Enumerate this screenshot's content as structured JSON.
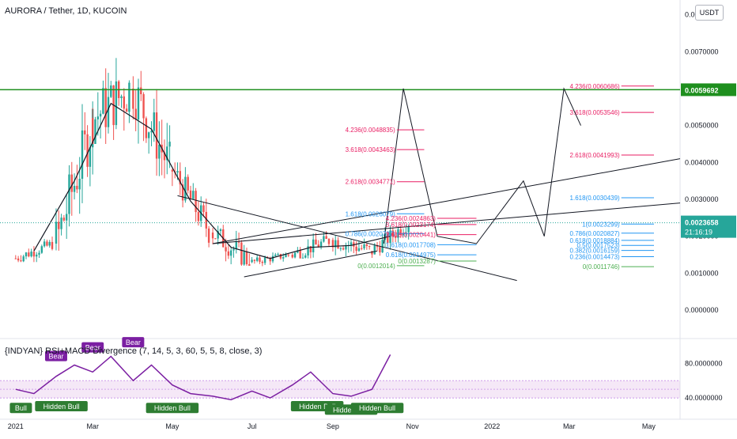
{
  "header": {
    "title": "AURORA / Tether, 1D, KUCOIN",
    "currency_button": "USDT"
  },
  "indicator": {
    "title": "{INDYAN} RSI+MACD Divergence (7, 14, 5, 3, 60, 5, 5, 8, close, 3)"
  },
  "price_axis": {
    "ticks": [
      "0.0080000",
      "0.0070000",
      "0.0060000",
      "0.0050000",
      "0.0040000",
      "0.0030000",
      "0.0020000",
      "0.0010000",
      "0.0000000"
    ],
    "tick_values": [
      0.008,
      0.007,
      0.006,
      0.005,
      0.004,
      0.003,
      0.002,
      0.001,
      0.0
    ],
    "resistance_label": "0.0059692",
    "resistance_value": 0.0059692,
    "last_price_label": "0.0023658",
    "last_price_value": 0.0023658,
    "countdown": "21:16:19"
  },
  "indicator_axis": {
    "ticks": [
      "80.0000000",
      "40.0000000"
    ],
    "tick_values": [
      80,
      40
    ]
  },
  "time_axis": {
    "labels": [
      "2021",
      "Mar",
      "May",
      "Jul",
      "Sep",
      "Nov",
      "2022",
      "Mar",
      "May"
    ]
  },
  "fib_sets": [
    {
      "levels": [
        "4.236(0.0048835)",
        "3.618(0.0043463)",
        "2.618(0.0034771)",
        "1.618(0.0026079)",
        "0.786(0.0020707)",
        "0(0.0012014)"
      ],
      "values": [
        0.0048835,
        0.0043463,
        0.0034771,
        0.0026079,
        0.0020707,
        0.0012014
      ]
    },
    {
      "levels": [
        "4.236(0.0024863)",
        "3.618(0.0023174)",
        "2.618(0.0020441)",
        "1.618(0.0017708)",
        "0.618(0.0014975)",
        "0(0.0013287)"
      ],
      "values": [
        0.0024863,
        0.0023174,
        0.0020441,
        0.0017708,
        0.0014975,
        0.0013287
      ]
    },
    {
      "levels": [
        "4.236(0.0060686)",
        "3.618(0.0053546)",
        "2.618(0.0041993)",
        "1.618(0.0030439)",
        "1(0.0023299)",
        "0.786(0.0020827)",
        "0.618(0.0018884)",
        "0.5(0.0017523)",
        "0.382(0.0016159)",
        "0.236(0.0014473)",
        "0(0.0011746)"
      ],
      "values": [
        0.0060686,
        0.0053546,
        0.0041993,
        0.0030439,
        0.0023299,
        0.0020827,
        0.0018884,
        0.0017523,
        0.0016159,
        0.0014473,
        0.0011746
      ]
    }
  ],
  "divergence_labels": [
    {
      "text": "Bear",
      "kind": "bear"
    },
    {
      "text": "Bear",
      "kind": "bear"
    },
    {
      "text": "Bear",
      "kind": "bear"
    },
    {
      "text": "Bull",
      "kind": "bull"
    },
    {
      "text": "Hidden Bull",
      "kind": "bull"
    },
    {
      "text": "Hidden Bull",
      "kind": "bull"
    },
    {
      "text": "Hidden Bull",
      "kind": "bull"
    },
    {
      "text": "Hidden Bull",
      "kind": "bull"
    },
    {
      "text": "Hidden Bull",
      "kind": "bull"
    }
  ],
  "colors": {
    "up": "#26a69a",
    "down": "#ef5350",
    "resistance": "#1e8f1e",
    "last_price": "#26a69a",
    "rsi": "#7b1fa2",
    "fib_red": "#e91e63",
    "fib_blue": "#2196f3",
    "fib_green": "#4caf50",
    "drawing": "#131722"
  },
  "chart_data": [
    {
      "type": "candlestick",
      "title": "AURORA / Tether, 1D, KUCOIN",
      "x_range": [
        "2020-12-20",
        "2022-05-25"
      ],
      "ylim": [
        -0.0006,
        0.0084
      ],
      "months": [
        {
          "month": "2021-01",
          "open": 0.0014,
          "high": 0.0022,
          "low": 0.0013,
          "close": 0.0018
        },
        {
          "month": "2021-02",
          "open": 0.0018,
          "high": 0.006,
          "low": 0.0016,
          "close": 0.0052
        },
        {
          "month": "2021-03",
          "open": 0.0052,
          "high": 0.0088,
          "low": 0.0045,
          "close": 0.006
        },
        {
          "month": "2021-04",
          "open": 0.006,
          "high": 0.0072,
          "low": 0.0032,
          "close": 0.0038
        },
        {
          "month": "2021-05",
          "open": 0.0038,
          "high": 0.004,
          "low": 0.0017,
          "close": 0.0021
        },
        {
          "month": "2021-06",
          "open": 0.0021,
          "high": 0.003,
          "low": 0.0012,
          "close": 0.0013
        },
        {
          "month": "2021-07",
          "open": 0.0013,
          "high": 0.0016,
          "low": 0.001,
          "close": 0.0015
        },
        {
          "month": "2021-08",
          "open": 0.0015,
          "high": 0.0025,
          "low": 0.0014,
          "close": 0.0019
        },
        {
          "month": "2021-09",
          "open": 0.0019,
          "high": 0.0025,
          "low": 0.0012,
          "close": 0.0016
        },
        {
          "month": "2021-10",
          "open": 0.0016,
          "high": 0.0025,
          "low": 0.0013,
          "close": 0.0024
        }
      ],
      "resistance": 0.0059692,
      "last_price": 0.0023658
    },
    {
      "type": "line",
      "title": "{INDYAN} RSI+MACD Divergence (7, 14, 5, 3, 60, 5, 5, 8, close, 3)",
      "ylim": [
        20,
        105
      ],
      "reference_levels": [
        60,
        50,
        40
      ],
      "series": [
        {
          "x": [
            "2021-01-01",
            "2021-01-15",
            "2021-02-01",
            "2021-02-15",
            "2021-03-01",
            "2021-03-15",
            "2021-04-01",
            "2021-04-15",
            "2021-05-01",
            "2021-05-15",
            "2021-06-01",
            "2021-06-15",
            "2021-07-01",
            "2021-07-15",
            "2021-08-01",
            "2021-08-15",
            "2021-09-01",
            "2021-09-15",
            "2021-10-01",
            "2021-10-15"
          ],
          "values": [
            50,
            45,
            65,
            78,
            70,
            88,
            60,
            78,
            55,
            45,
            42,
            38,
            48,
            40,
            55,
            70,
            45,
            42,
            50,
            90
          ]
        }
      ]
    }
  ]
}
